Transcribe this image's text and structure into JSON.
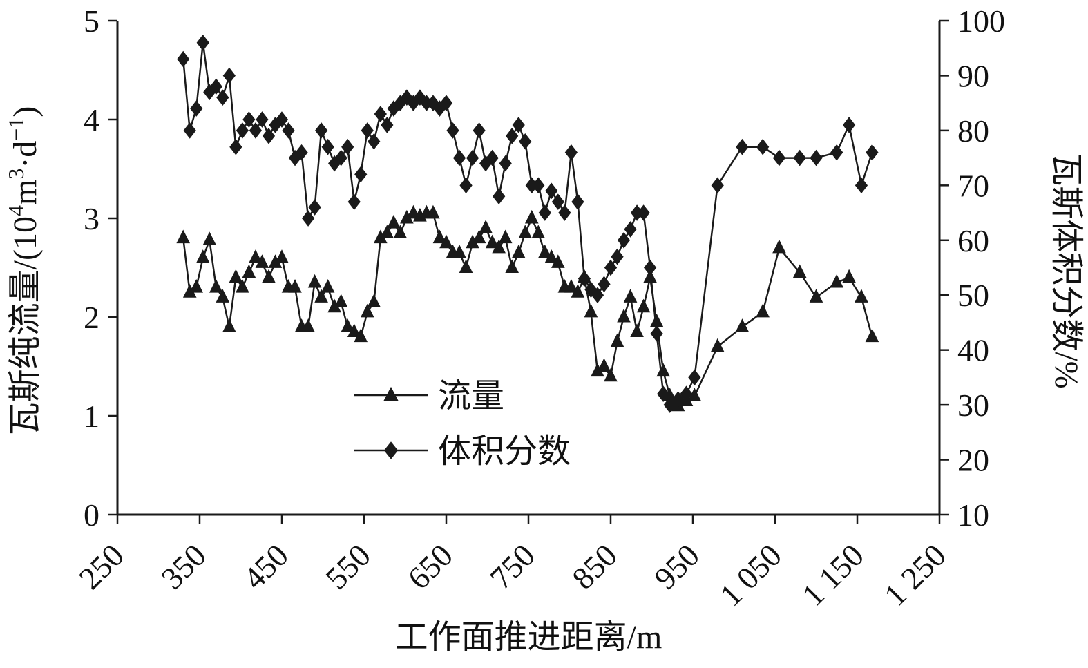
{
  "chart_data": {
    "type": "line",
    "title": "",
    "xlabel": "工作面推进距离/m",
    "ylabel_left": "瓦斯纯流量/(10⁴m³·d⁻¹)",
    "ylabel_left_rich": [
      {
        "t": "瓦斯纯流量/(10"
      },
      {
        "t": "4",
        "sup": true
      },
      {
        "t": "m"
      },
      {
        "t": "3",
        "sup": true
      },
      {
        "t": "·d"
      },
      {
        "t": "−1",
        "sup": true
      },
      {
        "t": ")"
      }
    ],
    "ylabel_right": "瓦斯体积分数/%",
    "xlim": [
      250,
      1250
    ],
    "ylim_left": [
      0,
      5
    ],
    "ylim_right": [
      10,
      100
    ],
    "x_ticks": [
      250,
      350,
      450,
      550,
      650,
      750,
      850,
      950,
      1050,
      1150,
      1250
    ],
    "x_tick_labels": [
      "250",
      "350",
      "450",
      "550",
      "650",
      "750",
      "850",
      "950",
      "1 050",
      "1 150",
      "1 250"
    ],
    "y_ticks_left": [
      0,
      1,
      2,
      3,
      4,
      5
    ],
    "y_ticks_right": [
      10,
      20,
      30,
      40,
      50,
      60,
      70,
      80,
      90,
      100
    ],
    "grid": false,
    "line_color": "#1a1a1a",
    "legend": {
      "position": "inside-lower-left",
      "entries": [
        {
          "label": "流量",
          "marker": "triangle"
        },
        {
          "label": "体积分数",
          "marker": "diamond"
        }
      ]
    },
    "x": [
      330,
      338,
      346,
      354,
      362,
      370,
      378,
      386,
      394,
      402,
      410,
      418,
      426,
      434,
      442,
      450,
      458,
      466,
      474,
      482,
      490,
      498,
      506,
      514,
      522,
      530,
      538,
      546,
      554,
      562,
      570,
      578,
      586,
      594,
      602,
      610,
      618,
      626,
      634,
      642,
      650,
      658,
      666,
      674,
      682,
      690,
      698,
      706,
      714,
      722,
      730,
      738,
      746,
      754,
      762,
      770,
      778,
      786,
      794,
      802,
      810,
      818,
      826,
      834,
      842,
      850,
      858,
      866,
      874,
      882,
      890,
      898,
      906,
      914,
      922,
      932,
      942,
      952,
      980,
      1010,
      1035,
      1055,
      1080,
      1100,
      1125,
      1140,
      1155,
      1168
    ],
    "series": [
      {
        "name": "流量",
        "axis": "left",
        "marker": "triangle",
        "values": [
          2.8,
          2.25,
          2.3,
          2.6,
          2.78,
          2.3,
          2.2,
          1.9,
          2.4,
          2.3,
          2.45,
          2.6,
          2.55,
          2.4,
          2.55,
          2.6,
          2.3,
          2.3,
          1.9,
          1.9,
          2.35,
          2.2,
          2.3,
          2.1,
          2.15,
          1.9,
          1.85,
          1.8,
          2.05,
          2.15,
          2.8,
          2.85,
          2.95,
          2.85,
          3.0,
          3.05,
          3.02,
          3.05,
          3.05,
          2.8,
          2.75,
          2.65,
          2.65,
          2.5,
          2.75,
          2.8,
          2.9,
          2.75,
          2.7,
          2.8,
          2.5,
          2.65,
          2.85,
          3.0,
          2.85,
          2.65,
          2.6,
          2.55,
          2.3,
          2.3,
          2.25,
          2.4,
          2.05,
          1.45,
          1.5,
          1.4,
          1.75,
          2.0,
          2.2,
          1.85,
          2.1,
          2.4,
          1.95,
          1.45,
          1.2,
          1.1,
          1.15,
          1.2,
          1.7,
          1.9,
          2.05,
          2.7,
          2.45,
          2.2,
          2.35,
          2.4,
          2.2,
          1.8
        ]
      },
      {
        "name": "体积分数",
        "axis": "right",
        "marker": "diamond",
        "values": [
          93,
          80,
          84,
          96,
          87,
          88,
          86,
          90,
          77,
          80,
          82,
          80,
          82,
          79,
          81,
          82,
          80,
          75,
          76,
          64,
          66,
          80,
          77,
          74,
          75,
          77,
          67,
          72,
          80,
          78,
          83,
          81,
          84,
          85,
          86,
          85,
          86,
          85,
          85,
          84,
          85,
          80,
          75,
          70,
          75,
          80,
          74,
          75,
          68,
          74,
          79,
          81,
          78,
          70,
          70,
          65,
          69,
          67,
          65,
          76,
          67,
          53,
          51,
          50,
          52,
          55,
          57,
          60,
          62,
          65,
          65,
          55,
          43,
          32,
          30,
          31,
          32,
          35,
          70,
          77,
          77,
          75,
          75,
          75,
          76,
          81,
          70,
          76
        ]
      }
    ]
  }
}
